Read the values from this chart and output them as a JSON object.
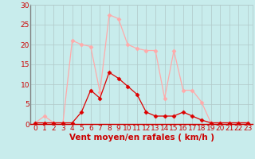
{
  "x": [
    0,
    1,
    2,
    3,
    4,
    5,
    6,
    7,
    8,
    9,
    10,
    11,
    12,
    13,
    14,
    15,
    16,
    17,
    18,
    19,
    20,
    21,
    22,
    23
  ],
  "y_rafales": [
    0.3,
    2,
    0.3,
    0.3,
    21,
    20,
    19.5,
    8,
    27.5,
    26.5,
    20,
    19,
    18.5,
    18.5,
    6.5,
    18.5,
    8.5,
    8.5,
    5.5,
    0.3,
    0.3,
    0.3,
    0.3,
    0.3
  ],
  "y_moyen": [
    0.3,
    0.3,
    0.3,
    0.3,
    0.3,
    3,
    8.5,
    6.5,
    13,
    11.5,
    9.5,
    7.5,
    3,
    2,
    2,
    2,
    3,
    2,
    1,
    0.3,
    0.3,
    0.3,
    0.3,
    0.3
  ],
  "color_rafales": "#ffaaaa",
  "color_moyen": "#dd0000",
  "background": "#c8ecec",
  "grid_color": "#b0c8c8",
  "xlabel": "Vent moyen/en rafales ( km/h )",
  "ylim": [
    0,
    30
  ],
  "xlim": [
    -0.5,
    23.5
  ],
  "yticks": [
    0,
    5,
    10,
    15,
    20,
    25,
    30
  ],
  "xticks": [
    0,
    1,
    2,
    3,
    4,
    5,
    6,
    7,
    8,
    9,
    10,
    11,
    12,
    13,
    14,
    15,
    16,
    17,
    18,
    19,
    20,
    21,
    22,
    23
  ],
  "tick_fontsize": 6.5,
  "xlabel_fontsize": 7.5
}
